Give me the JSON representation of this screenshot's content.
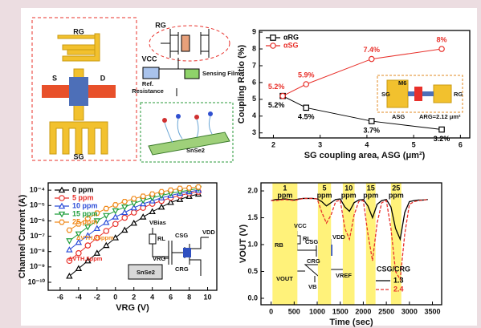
{
  "diagram": {
    "device_labels": [
      "RG",
      "S",
      "D",
      "SG"
    ],
    "circuit_labels": [
      "RG",
      "VCC",
      "Ref.",
      "Resistance",
      "Sensing Film",
      "SnSe2"
    ]
  },
  "chart_data": [
    {
      "type": "line",
      "xlabel": "SG coupling area, ASG (μm²)",
      "ylabel": "Coupling Ratio (%)",
      "x": [
        2.2,
        2.7,
        4.1,
        5.6
      ],
      "xlim": [
        1.7,
        6.2
      ],
      "xticks": [
        2,
        3,
        4,
        5,
        6
      ],
      "ylim": [
        2.7,
        9.1
      ],
      "yticks": [
        3,
        4,
        5,
        6,
        7,
        8,
        9
      ],
      "legend": "upper left",
      "series": [
        {
          "name": "αRG",
          "color": "#000000",
          "marker": "square",
          "values": [
            5.2,
            4.5,
            3.7,
            3.2
          ],
          "value_labels": [
            "5.2%",
            "4.5%",
            "3.7%",
            "3.2%"
          ]
        },
        {
          "name": "αSG",
          "color": "#e8302a",
          "marker": "circle",
          "values": [
            5.2,
            5.9,
            7.4,
            8.0
          ],
          "value_labels": [
            "5.2%",
            "5.9%",
            "7.4%",
            "8%"
          ]
        }
      ],
      "annotations": [
        "M6",
        "SG",
        "RG",
        "ASG",
        "ARG=2.12 μm²"
      ]
    },
    {
      "type": "line",
      "xlabel": "VRG (V)",
      "ylabel": "Channel Current (A)",
      "log_y": true,
      "x": [
        -5,
        -4,
        -3,
        -2,
        -1,
        0,
        1,
        2,
        3,
        4,
        5,
        6,
        7,
        8,
        9
      ],
      "xlim": [
        -7.3,
        11
      ],
      "xticks": [
        -6,
        -4,
        -2,
        0,
        2,
        4,
        6,
        8,
        10
      ],
      "ylim": [
        3e-11,
        0.0003
      ],
      "yticks": [
        {
          "value": 1e-10,
          "label": "10⁻¹⁰"
        },
        {
          "value": 1e-09,
          "label": "10⁻⁹"
        },
        {
          "value": 1e-08,
          "label": "10⁻⁸"
        },
        {
          "value": 1e-07,
          "label": "10⁻⁷"
        },
        {
          "value": 1e-06,
          "label": "10⁻⁶"
        },
        {
          "value": 1e-05,
          "label": "10⁻⁵"
        },
        {
          "value": 0.0001,
          "label": "10⁻⁴"
        }
      ],
      "legend": "upper left",
      "series": [
        {
          "name": "0 ppm",
          "color": "#000000",
          "marker": "triangle",
          "values": [
            2.5e-10,
            7.9e-10,
            2.5e-09,
            7.9e-09,
            2.5e-08,
            7.9e-08,
            2.5e-07,
            7.1e-07,
            1.8e-06,
            4e-06,
            7.9e-06,
            1.6e-05,
            2.5e-05,
            4e-05,
            5.6e-05
          ]
        },
        {
          "name": "5 ppm",
          "color": "#e8302a",
          "marker": "circle",
          "values": [
            2.5e-09,
            7.9e-09,
            2.5e-08,
            7.9e-08,
            2.2e-07,
            6.3e-07,
            1.6e-06,
            3.5e-06,
            7.1e-06,
            1.3e-05,
            2e-05,
            3.2e-05,
            4.5e-05,
            6.3e-05,
            7.9e-05
          ]
        },
        {
          "name": "10 ppm",
          "color": "#2b4cd8",
          "marker": "triangle",
          "values": [
            1.3e-08,
            4e-08,
            1.1e-07,
            3.2e-07,
            7.9e-07,
            1.8e-06,
            3.5e-06,
            7.1e-06,
            1.3e-05,
            2e-05,
            3.2e-05,
            4.5e-05,
            6.3e-05,
            7.9e-05,
            0.0001
          ]
        },
        {
          "name": "15 ppm",
          "color": "#1f9e3a",
          "marker": "down",
          "values": [
            5e-08,
            1.4e-07,
            4e-07,
            1e-06,
            2.2e-06,
            4.5e-06,
            7.9e-06,
            1.4e-05,
            2.2e-05,
            3.2e-05,
            4.5e-05,
            6.3e-05,
            7.9e-05,
            0.0001,
            0.00013
          ]
        },
        {
          "name": "25 ppm",
          "color": "#f08a1c",
          "marker": "hexagon",
          "values": [
            2.5e-07,
            6.3e-07,
            1.4e-06,
            3.2e-06,
            6.3e-06,
            1.1e-05,
            1.8e-05,
            2.8e-05,
            4e-05,
            5.6e-05,
            7.9e-05,
            0.0001,
            0.00013,
            0.00014,
            0.00016
          ]
        }
      ],
      "annotations": [
        "VBias",
        "RL",
        "CSG",
        "VRG",
        "CRG",
        "VDD",
        "SnSe2",
        "ΔVTH,25ppm",
        "ΔVTH,5ppm"
      ]
    },
    {
      "type": "line",
      "xlabel": "Time (sec)",
      "ylabel": "VOUT (V)",
      "x": [
        0,
        100,
        200,
        300,
        400,
        500,
        600,
        700,
        800,
        900,
        1000,
        1100,
        1200,
        1300,
        1400,
        1500,
        1600,
        1700,
        1800,
        1900,
        2000,
        2100,
        2200,
        2300,
        2400,
        2500,
        2600,
        2700,
        2800,
        2900,
        3000,
        3100,
        3200,
        3300,
        3400
      ],
      "xlim": [
        -220,
        3700
      ],
      "xticks": [
        0,
        500,
        1000,
        1500,
        2000,
        2500,
        3000,
        3500
      ],
      "ylim": [
        -0.12,
        2.15
      ],
      "yticks": [
        {
          "value": 0,
          "label": "0.0"
        },
        0.5,
        {
          "value": 1,
          "label": "1.0"
        },
        1.5,
        {
          "value": 2,
          "label": "2.0"
        }
      ],
      "legend": "lower right",
      "legend_title": "CSG/CRG",
      "band_color": "#fff27a",
      "bands": [
        {
          "lines": [
            "1",
            "ppm"
          ],
          "range": [
            30,
            570
          ]
        },
        {
          "lines": [
            "5",
            "ppm"
          ],
          "range": [
            1015,
            1300
          ]
        },
        {
          "lines": [
            "10",
            "ppm"
          ],
          "range": [
            1555,
            1810
          ]
        },
        {
          "lines": [
            "15",
            "ppm"
          ],
          "range": [
            2060,
            2265
          ]
        },
        {
          "lines": [
            "25",
            "ppm"
          ],
          "range": [
            2600,
            2825
          ]
        }
      ],
      "series": [
        {
          "name": "1.3",
          "color": "#000000",
          "linestyle": "solid",
          "values": [
            1.82,
            1.84,
            1.84,
            1.85,
            1.84,
            1.83,
            1.85,
            1.86,
            1.86,
            1.86,
            1.85,
            1.8,
            1.72,
            1.78,
            1.84,
            1.85,
            1.7,
            1.62,
            1.78,
            1.83,
            1.84,
            1.72,
            1.5,
            1.75,
            1.82,
            1.84,
            1.7,
            1.3,
            1.1,
            1.6,
            1.8,
            1.82,
            1.83,
            1.83,
            1.84
          ]
        },
        {
          "name": "2.4",
          "color": "#e8302a",
          "linestyle": "dashed",
          "values": [
            1.82,
            1.82,
            1.83,
            1.84,
            1.83,
            1.82,
            1.84,
            1.86,
            1.86,
            1.86,
            1.85,
            1.6,
            1.4,
            1.55,
            1.8,
            1.83,
            1.3,
            1.1,
            1.55,
            1.8,
            1.82,
            1.2,
            0.7,
            1.4,
            1.78,
            1.82,
            1.3,
            0.5,
            0.35,
            1.2,
            1.75,
            1.8,
            1.82,
            1.83,
            1.84
          ]
        }
      ],
      "annotations": [
        "VCC",
        "RL",
        "RB",
        "CSG",
        "CRG",
        "VDD",
        "VOUT",
        "VB",
        "VREF"
      ]
    }
  ]
}
